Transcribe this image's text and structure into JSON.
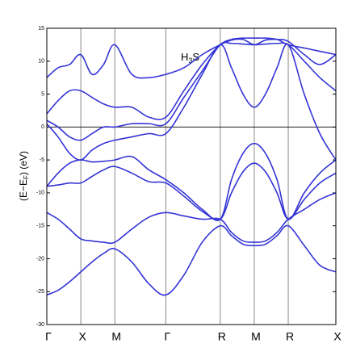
{
  "chart_data": {
    "type": "line",
    "annotation_parts": [
      "H",
      "3",
      "S"
    ],
    "ylabel_parts": [
      "(E−E",
      "F",
      ") (eV)"
    ],
    "x": [
      0,
      0.33,
      0.67,
      1,
      1.33,
      1.67,
      2,
      2.5,
      3,
      3.5,
      4.03,
      4.57,
      5.1,
      5.43,
      5.77,
      6.1,
      6.43,
      6.77,
      7.1,
      7.57,
      8.03,
      8.5
    ],
    "xlim": [
      0,
      8.5
    ],
    "xticks": [
      {
        "value": 0,
        "label": "Γ"
      },
      {
        "value": 1,
        "label": "X"
      },
      {
        "value": 2,
        "label": "M"
      },
      {
        "value": 3.5,
        "label": "Γ"
      },
      {
        "value": 5.1,
        "label": "R"
      },
      {
        "value": 6.1,
        "label": "M"
      },
      {
        "value": 7.1,
        "label": "R"
      },
      {
        "value": 8.5,
        "label": "X"
      }
    ],
    "ylim": [
      -30,
      15
    ],
    "yticks": [
      -30,
      -25,
      -20,
      -15,
      -10,
      -5,
      0,
      5,
      10,
      15
    ],
    "hline": 0,
    "series": [
      {
        "color": "#3434d6",
        "values": [
          -25.5,
          -24.8,
          -23.5,
          -22,
          -20.5,
          -19.2,
          -18.5,
          -20.5,
          -23.8,
          -25.5,
          -22.5,
          -17.5,
          -15,
          -16.5,
          -17.8,
          -18,
          -17.8,
          -16.5,
          -15,
          -18,
          -21,
          -22
        ]
      },
      {
        "color": "#3434d6",
        "values": [
          -13,
          -14,
          -15.5,
          -17,
          -17.3,
          -17.5,
          -17.5,
          -15.5,
          -13.7,
          -13,
          -13.5,
          -14,
          -14,
          -16,
          -17.3,
          -17.5,
          -17.3,
          -16,
          -14,
          -12.5,
          -11,
          -10
        ]
      },
      {
        "color": "#3434d6",
        "values": [
          -9,
          -8.8,
          -8.5,
          -8.5,
          -7.5,
          -6.5,
          -6,
          -7,
          -8.3,
          -8.5,
          -10.5,
          -12.8,
          -14,
          -10,
          -6.8,
          -5.5,
          -6.8,
          -10,
          -14,
          -11,
          -8.5,
          -7
        ]
      },
      {
        "color": "#3434d6",
        "values": [
          -9,
          -7,
          -5.5,
          -5,
          -5.3,
          -5.2,
          -5,
          -4.5,
          -6.5,
          -8,
          -10,
          -12.5,
          -14,
          -8,
          -4,
          -2.5,
          -4,
          -8,
          -14,
          -10,
          -7,
          -5
        ]
      },
      {
        "color": "#3434d6",
        "values": [
          0.5,
          -1.5,
          -4,
          -5,
          -3.5,
          -2.5,
          -2,
          -1.5,
          -1,
          -1,
          3,
          8,
          12.5,
          9,
          5,
          3,
          5,
          9,
          12.5,
          5,
          -1,
          -5
        ]
      },
      {
        "color": "#3434d6",
        "values": [
          1,
          0,
          -1.5,
          -2,
          -1,
          0,
          0,
          0.5,
          0.5,
          0.5,
          4.5,
          8.5,
          12.5,
          12.7,
          12.6,
          12.5,
          12.6,
          12.7,
          12.5,
          10,
          7.5,
          5.5
        ]
      },
      {
        "color": "#3434d6",
        "values": [
          2,
          4,
          5.5,
          5.5,
          4.5,
          3.5,
          3,
          3,
          1.5,
          1.5,
          5.5,
          9.5,
          12.5,
          13.3,
          13.5,
          13.5,
          13.5,
          13.3,
          12.5,
          12,
          11.5,
          11
        ]
      },
      {
        "color": "#3434d6",
        "values": [
          7.5,
          9,
          9.5,
          11,
          8,
          9.5,
          12.5,
          8,
          7.5,
          8,
          9,
          11,
          12.5,
          13.2,
          13.3,
          12.5,
          13.2,
          13.3,
          13,
          11,
          9.5,
          11
        ]
      }
    ]
  }
}
